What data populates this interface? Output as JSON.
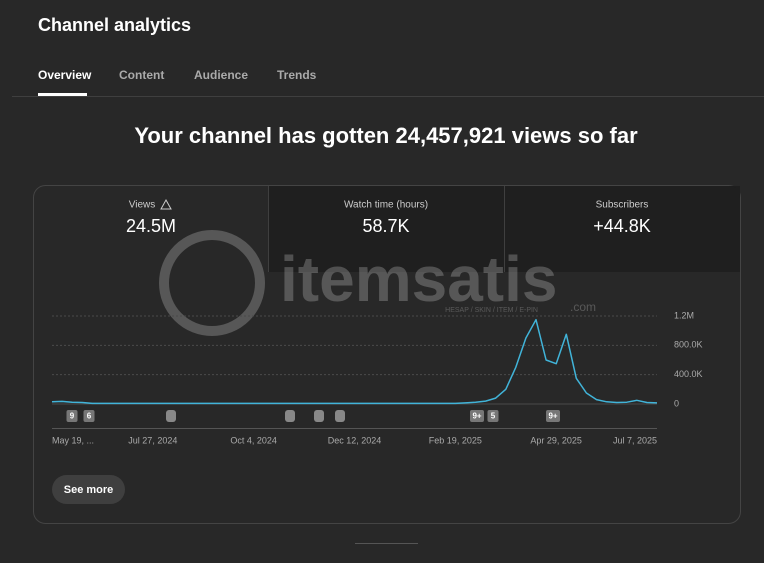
{
  "header": {
    "title": "Channel analytics"
  },
  "tabs": [
    "Overview",
    "Content",
    "Audience",
    "Trends"
  ],
  "headline": "Your channel has gotten 24,457,921 views so far",
  "metrics": [
    {
      "label": "Views",
      "value": "24.5M"
    },
    {
      "label": "Watch time (hours)",
      "value": "58.7K"
    },
    {
      "label": "Subscribers",
      "value": "+44.8K"
    }
  ],
  "watermark": {
    "name": "itemsatis",
    "tagline": "HESAP / SKIN / ITEM / E-PIN",
    "suffix": ".com"
  },
  "chart_data": {
    "type": "line",
    "categories": [
      "May 19, ...",
      null,
      null,
      null,
      null,
      null,
      null,
      null,
      null,
      null,
      "Jul 27, 2024",
      null,
      null,
      null,
      null,
      null,
      null,
      null,
      null,
      null,
      "Oct 4, 2024",
      null,
      null,
      null,
      null,
      null,
      null,
      null,
      null,
      null,
      "Dec 12, 2024",
      null,
      null,
      null,
      null,
      null,
      null,
      null,
      null,
      null,
      "Feb 19, 2025",
      null,
      null,
      null,
      null,
      null,
      null,
      null,
      null,
      null,
      "Apr 29, 2025",
      null,
      null,
      null,
      null,
      null,
      null,
      null,
      null,
      null,
      "Jul 7, 2025"
    ],
    "series": [
      {
        "name": "Views",
        "color": "#41b4d9",
        "values": [
          30000,
          35000,
          25000,
          20000,
          8000,
          8000,
          8000,
          8000,
          8000,
          8000,
          8000,
          8000,
          8000,
          8000,
          8000,
          8000,
          8000,
          8000,
          8000,
          8000,
          8000,
          8000,
          8000,
          8000,
          8000,
          8000,
          8000,
          8000,
          8000,
          8000,
          8000,
          8000,
          8000,
          8000,
          8000,
          8000,
          8000,
          8000,
          8000,
          8000,
          8000,
          15000,
          25000,
          40000,
          80000,
          200000,
          500000,
          900000,
          1150000,
          600000,
          550000,
          950000,
          350000,
          150000,
          60000,
          30000,
          20000,
          25000,
          50000,
          20000,
          15000
        ]
      }
    ],
    "ylim": [
      0,
      1200000
    ],
    "yticks": [
      0,
      {
        "value": 400000,
        "label": "400.0K"
      },
      {
        "value": 800000,
        "label": "800.0K"
      },
      {
        "value": 1200000,
        "label": "1.2M"
      }
    ],
    "grid": true,
    "annotations": [
      "9",
      "6",
      "9+",
      "5",
      "9+"
    ]
  },
  "button": "See more"
}
